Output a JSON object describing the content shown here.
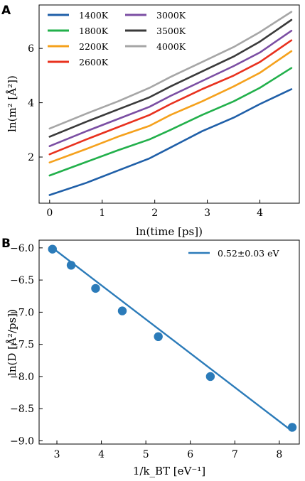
{
  "chart_data": [
    {
      "panel_label": "A",
      "type": "line",
      "xlabel": "ln(time [ps])",
      "ylabel": "ln(m² [Å²])",
      "xlim": [
        -0.2,
        4.75
      ],
      "ylim": [
        0.3,
        7.6
      ],
      "xticks": [
        0,
        1,
        2,
        3,
        4
      ],
      "yticks": [
        2,
        4,
        6
      ],
      "legend_position": "top-left",
      "grid": false,
      "series": [
        {
          "name": "1400K",
          "color": "#1f5fa8",
          "x": [
            0,
            0.7,
            1.3,
            1.9,
            2.3,
            2.9,
            3.5,
            4.0,
            4.6
          ],
          "y": [
            0.6,
            1.05,
            1.5,
            1.95,
            2.35,
            2.95,
            3.45,
            3.95,
            4.5
          ]
        },
        {
          "name": "1800K",
          "color": "#22b04b",
          "x": [
            0,
            0.7,
            1.3,
            1.9,
            2.3,
            2.9,
            3.5,
            4.0,
            4.6
          ],
          "y": [
            1.32,
            1.82,
            2.25,
            2.65,
            3.0,
            3.55,
            4.05,
            4.55,
            5.28
          ]
        },
        {
          "name": "2200K",
          "color": "#f5a11c",
          "x": [
            0,
            0.7,
            1.3,
            1.9,
            2.3,
            2.9,
            3.5,
            4.0,
            4.6
          ],
          "y": [
            1.8,
            2.3,
            2.75,
            3.15,
            3.55,
            4.05,
            4.6,
            5.1,
            5.9
          ]
        },
        {
          "name": "2600K",
          "color": "#e8311e",
          "x": [
            0,
            0.7,
            1.3,
            1.9,
            2.3,
            2.9,
            3.5,
            4.0,
            4.6
          ],
          "y": [
            2.1,
            2.65,
            3.1,
            3.55,
            3.95,
            4.5,
            5.0,
            5.5,
            6.3
          ]
        },
        {
          "name": "3000K",
          "color": "#7b4ea3",
          "x": [
            0,
            0.7,
            1.3,
            1.9,
            2.3,
            2.9,
            3.5,
            4.0,
            4.6
          ],
          "y": [
            2.4,
            2.95,
            3.4,
            3.85,
            4.25,
            4.8,
            5.35,
            5.85,
            6.65
          ]
        },
        {
          "name": "3500K",
          "color": "#3a3a3a",
          "x": [
            0,
            0.7,
            1.3,
            1.9,
            2.3,
            2.9,
            3.5,
            4.0,
            4.6
          ],
          "y": [
            2.75,
            3.3,
            3.75,
            4.2,
            4.6,
            5.15,
            5.7,
            6.25,
            7.05
          ]
        },
        {
          "name": "4000K",
          "color": "#a6a6a6",
          "x": [
            0,
            0.7,
            1.3,
            1.9,
            2.3,
            2.9,
            3.5,
            4.0,
            4.6
          ],
          "y": [
            3.05,
            3.6,
            4.05,
            4.55,
            4.95,
            5.5,
            6.05,
            6.6,
            7.35
          ]
        }
      ]
    },
    {
      "panel_label": "B",
      "type": "scatter",
      "xlabel": "1/k_BT [eV⁻¹]",
      "ylabel": "ln(D [Å²/ps])",
      "xlim": [
        2.6,
        8.45
      ],
      "ylim": [
        -9.05,
        -5.88
      ],
      "xticks": [
        3,
        4,
        5,
        6,
        7,
        8
      ],
      "yticks": [
        -6.0,
        -6.5,
        -7.0,
        -7.5,
        -8.0,
        -8.5,
        -9.0
      ],
      "ytick_labels": [
        "−6.0",
        "−6.5",
        "−7.0",
        "−7.5",
        "−8.0",
        "−8.5",
        "−9.0"
      ],
      "legend_position": "top-right",
      "grid": false,
      "point_color": "#2b7bb9",
      "points": {
        "x": [
          2.9,
          3.32,
          3.87,
          4.47,
          5.28,
          6.45,
          8.29
        ],
        "y": [
          -6.02,
          -6.27,
          -6.63,
          -6.98,
          -7.38,
          -8.0,
          -8.79
        ]
      },
      "fit": {
        "name": "0.52±0.03 eV",
        "color": "#2b7bb9",
        "x": [
          2.9,
          8.29
        ],
        "y": [
          -6.0,
          -8.85
        ]
      }
    }
  ]
}
